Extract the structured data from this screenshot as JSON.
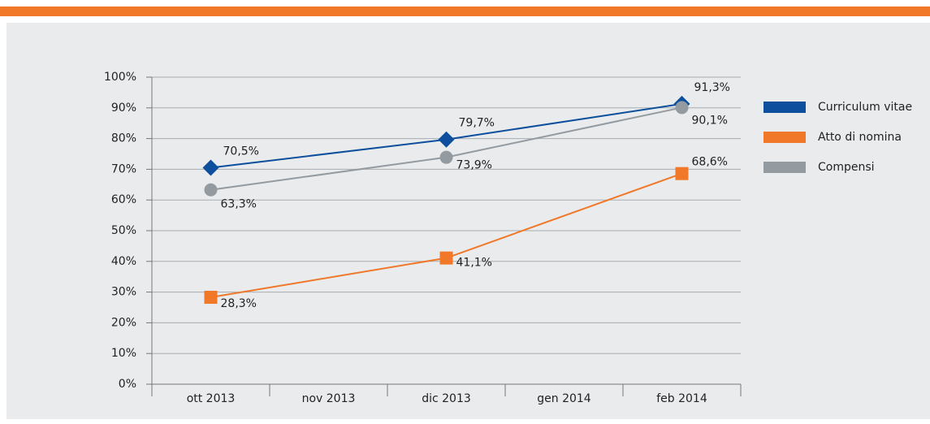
{
  "chart_data": {
    "type": "line",
    "categories": [
      "ott 2013",
      "nov 2013",
      "dic 2013",
      "gen 2014",
      "feb 2014"
    ],
    "ylim": [
      0,
      100
    ],
    "yticks": [
      {
        "value": 0,
        "label": "0%"
      },
      {
        "value": 10,
        "label": "10%"
      },
      {
        "value": 20,
        "label": "20%"
      },
      {
        "value": 30,
        "label": "30%"
      },
      {
        "value": 40,
        "label": "40%"
      },
      {
        "value": 50,
        "label": "50%"
      },
      {
        "value": 60,
        "label": "60%"
      },
      {
        "value": 70,
        "label": "70%"
      },
      {
        "value": 80,
        "label": "80%"
      },
      {
        "value": 90,
        "label": "90%"
      },
      {
        "value": 100,
        "label": "100%"
      }
    ],
    "grid": true,
    "legend": "right",
    "series": [
      {
        "name": "Curriculum vitae",
        "color": "#0d4f9c",
        "marker": "diamond",
        "x": [
          "ott 2013",
          "dic 2013",
          "feb 2014"
        ],
        "values": [
          70.5,
          79.7,
          91.3
        ],
        "value_labels": [
          "70,5%",
          "79,7%",
          "91,3%"
        ]
      },
      {
        "name": "Atto di nomina",
        "color": "#f07828",
        "marker": "square",
        "x": [
          "ott 2013",
          "dic 2013",
          "feb 2014"
        ],
        "values": [
          28.3,
          41.1,
          68.6
        ],
        "value_labels": [
          "28,3%",
          "41,1%",
          "68,6%"
        ]
      },
      {
        "name": "Compensi",
        "color": "#939ba1",
        "marker": "circle",
        "x": [
          "ott 2013",
          "dic 2013",
          "feb 2014"
        ],
        "values": [
          63.3,
          73.9,
          90.1
        ],
        "value_labels": [
          "63,3%",
          "73,9%",
          "90,1%"
        ]
      }
    ]
  }
}
